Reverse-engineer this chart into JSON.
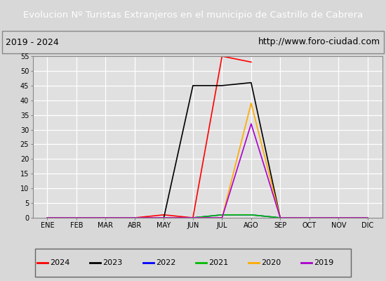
{
  "title": "Evolucion Nº Turistas Extranjeros en el municipio de Castrillo de Cabrera",
  "subtitle_left": "2019 - 2024",
  "subtitle_right": "http://www.foro-ciudad.com",
  "x_labels": [
    "ENE",
    "FEB",
    "MAR",
    "ABR",
    "MAY",
    "JUN",
    "JUL",
    "AGO",
    "SEP",
    "OCT",
    "NOV",
    "DIC"
  ],
  "ylim": [
    0,
    55
  ],
  "yticks": [
    0,
    5,
    10,
    15,
    20,
    25,
    30,
    35,
    40,
    45,
    50,
    55
  ],
  "series": {
    "2024": {
      "color": "#ff0000",
      "data": [
        0,
        0,
        0,
        0,
        1,
        0,
        55,
        53,
        null,
        null,
        null,
        null
      ]
    },
    "2023": {
      "color": "#000000",
      "data": [
        0,
        0,
        0,
        0,
        0,
        45,
        45,
        46,
        0,
        0,
        0,
        0
      ]
    },
    "2022": {
      "color": "#0000ff",
      "data": [
        0,
        0,
        0,
        0,
        0,
        0,
        1,
        1,
        0,
        0,
        0,
        0
      ]
    },
    "2021": {
      "color": "#00bb00",
      "data": [
        0,
        0,
        0,
        0,
        0,
        0,
        1,
        1,
        0,
        0,
        0,
        0
      ]
    },
    "2020": {
      "color": "#ffaa00",
      "data": [
        0,
        0,
        0,
        0,
        0,
        0,
        0,
        39,
        0,
        0,
        0,
        0
      ]
    },
    "2019": {
      "color": "#aa00cc",
      "data": [
        0,
        0,
        0,
        0,
        0,
        0,
        0,
        32,
        0,
        0,
        0,
        0
      ]
    }
  },
  "title_bg_color": "#2060a8",
  "title_text_color": "#ffffff",
  "fig_bg_color": "#d8d8d8",
  "plot_bg_color": "#e0e0e0",
  "subtitle_bg_color": "#d8d8d8",
  "grid_color": "#ffffff",
  "border_color": "#888888",
  "title_fontsize": 9.5,
  "tick_fontsize": 7,
  "legend_fontsize": 8
}
